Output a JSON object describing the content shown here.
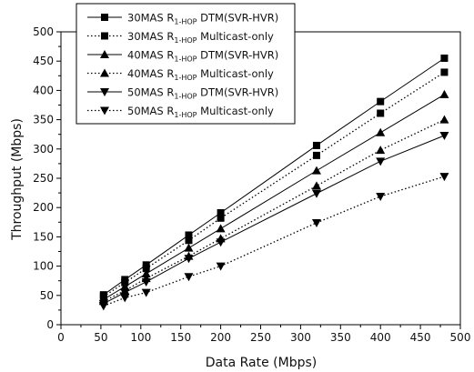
{
  "chart_data": {
    "type": "line",
    "title": "",
    "xlabel": "Data Rate (Mbps)",
    "ylabel": "Throughput (Mbps)",
    "xlim": [
      0,
      500
    ],
    "ylim": [
      0,
      500
    ],
    "xticks": [
      0,
      50,
      100,
      150,
      200,
      250,
      300,
      350,
      400,
      450,
      500
    ],
    "yticks": [
      0,
      50,
      100,
      150,
      200,
      250,
      300,
      350,
      400,
      450,
      500
    ],
    "grid": false,
    "legend_position": "top-left",
    "x": [
      53.3,
      80,
      106.7,
      160,
      200,
      320,
      400,
      480
    ],
    "series": [
      {
        "name_prefix": "30MAS R",
        "name_sub": "1-HOP",
        "name_suffix": " DTM(SVR-HVR)",
        "marker": "square",
        "line": "solid",
        "values": [
          51,
          77,
          102,
          153,
          191,
          306,
          381,
          455
        ]
      },
      {
        "name_prefix": "30MAS R",
        "name_sub": "1-HOP",
        "name_suffix": " Multicast-only",
        "marker": "square",
        "line": "dotted",
        "values": [
          48,
          72,
          96,
          144,
          182,
          289,
          361,
          431
        ]
      },
      {
        "name_prefix": "40MAS R",
        "name_sub": "1-HOP",
        "name_suffix": " DTM(SVR-HVR)",
        "marker": "triangle-up",
        "line": "solid",
        "values": [
          43,
          65,
          87,
          131,
          164,
          263,
          328,
          393
        ]
      },
      {
        "name_prefix": "40MAS R",
        "name_sub": "1-HOP",
        "name_suffix": " Multicast-only",
        "marker": "triangle-up",
        "line": "dotted",
        "values": [
          40,
          58,
          79,
          117,
          147,
          237,
          298,
          350
        ]
      },
      {
        "name_prefix": "50MAS R",
        "name_sub": "1-HOP",
        "name_suffix": " DTM(SVR-HVR)",
        "marker": "triangle-down",
        "line": "solid",
        "values": [
          36,
          55,
          73,
          113,
          141,
          224,
          279,
          323
        ]
      },
      {
        "name_prefix": "50MAS R",
        "name_sub": "1-HOP",
        "name_suffix": " Multicast-only",
        "marker": "triangle-down",
        "line": "dotted",
        "values": [
          32,
          46,
          55,
          82,
          100,
          174,
          219,
          253
        ]
      }
    ]
  }
}
